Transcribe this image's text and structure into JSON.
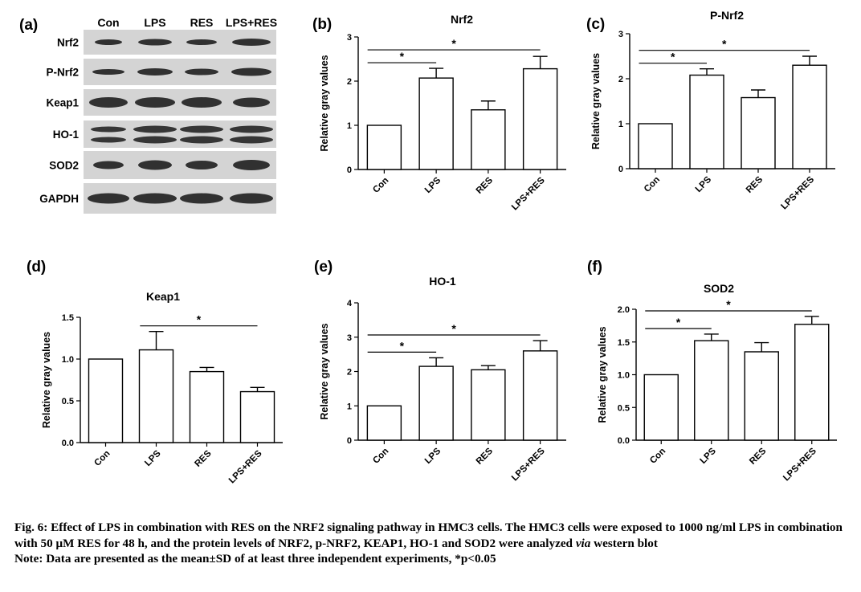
{
  "colors": {
    "ink": "#000000",
    "bar_fill": "#ffffff",
    "blot_background": "#d4d4d4",
    "band": "#1a1a1a"
  },
  "blot": {
    "panel_label": "(a)",
    "lanes": [
      "Con",
      "LPS",
      "RES",
      "LPS+RES"
    ],
    "rows": [
      "Nrf2",
      "P-Nrf2",
      "Keap1",
      "HO-1",
      "SOD2",
      "GAPDH"
    ]
  },
  "chart_data": [
    {
      "panel_label": "(b)",
      "type": "bar",
      "title": "Nrf2",
      "categories": [
        "Con",
        "LPS",
        "RES",
        "LPS+RES"
      ],
      "values": [
        1.0,
        2.07,
        1.35,
        2.28
      ],
      "errors": [
        0,
        0.22,
        0.2,
        0.28
      ],
      "ylabel": "Relative gray values",
      "ylim": [
        0,
        3
      ],
      "yticks": [
        "0",
        "1",
        "2",
        "3"
      ],
      "significance": [
        {
          "from": "Con",
          "to": "LPS",
          "label": "*"
        },
        {
          "from": "Con",
          "to": "LPS+RES",
          "label": "*"
        }
      ]
    },
    {
      "panel_label": "(c)",
      "type": "bar",
      "title": "P-Nrf2",
      "categories": [
        "Con",
        "LPS",
        "RES",
        "LPS+RES"
      ],
      "values": [
        1.0,
        2.08,
        1.58,
        2.3
      ],
      "errors": [
        0,
        0.14,
        0.17,
        0.2
      ],
      "ylabel": "Relative gray values",
      "ylim": [
        0,
        3
      ],
      "yticks": [
        "0",
        "1",
        "2",
        "3"
      ],
      "significance": [
        {
          "from": "Con",
          "to": "LPS",
          "label": "*"
        },
        {
          "from": "Con",
          "to": "LPS+RES",
          "label": "*"
        }
      ]
    },
    {
      "panel_label": "(d)",
      "type": "bar",
      "title": "Keap1",
      "categories": [
        "Con",
        "LPS",
        "RES",
        "LPS+RES"
      ],
      "values": [
        1.0,
        1.11,
        0.85,
        0.61
      ],
      "errors": [
        0,
        0.22,
        0.05,
        0.05
      ],
      "ylabel": "Relative gray values",
      "ylim": [
        0,
        1.5
      ],
      "yticks": [
        "0.0",
        "0.5",
        "1.0",
        "1.5"
      ],
      "significance": [
        {
          "from": "LPS",
          "to": "LPS+RES",
          "label": "*"
        }
      ]
    },
    {
      "panel_label": "(e)",
      "type": "bar",
      "title": "HO-1",
      "categories": [
        "Con",
        "LPS",
        "RES",
        "LPS+RES"
      ],
      "values": [
        1.0,
        2.15,
        2.05,
        2.6
      ],
      "errors": [
        0,
        0.25,
        0.12,
        0.3
      ],
      "ylabel": "Relative gray values",
      "ylim": [
        0,
        4
      ],
      "yticks": [
        "0",
        "1",
        "2",
        "3",
        "4"
      ],
      "significance": [
        {
          "from": "Con",
          "to": "LPS",
          "label": "*"
        },
        {
          "from": "Con",
          "to": "LPS+RES",
          "label": "*"
        }
      ]
    },
    {
      "panel_label": "(f)",
      "type": "bar",
      "title": "SOD2",
      "categories": [
        "Con",
        "LPS",
        "RES",
        "LPS+RES"
      ],
      "values": [
        1.0,
        1.52,
        1.35,
        1.77
      ],
      "errors": [
        0,
        0.1,
        0.14,
        0.12
      ],
      "ylabel": "Relative gray values",
      "ylim": [
        0,
        2.0
      ],
      "yticks": [
        "0.0",
        "0.5",
        "1.0",
        "1.5",
        "2.0"
      ],
      "significance": [
        {
          "from": "Con",
          "to": "LPS",
          "label": "*"
        },
        {
          "from": "Con",
          "to": "LPS+RES",
          "label": "*"
        }
      ]
    }
  ],
  "caption": {
    "figure_line_before_italic": "Fig. 6: Effect of LPS in combination with RES on the NRF2 signaling pathway in HMC3 cells. The HMC3 cells were exposed to 1000 ng/ml LPS in combination with 50 μM RES for 48 h, and the protein levels of NRF2, p-NRF2, KEAP1, HO-1 and SOD2 were analyzed ",
    "italic_word": "via",
    "figure_line_after_italic": " western blot",
    "note": "Note: Data are presented as the mean±SD of at least three independent experiments, *p<0.05"
  }
}
